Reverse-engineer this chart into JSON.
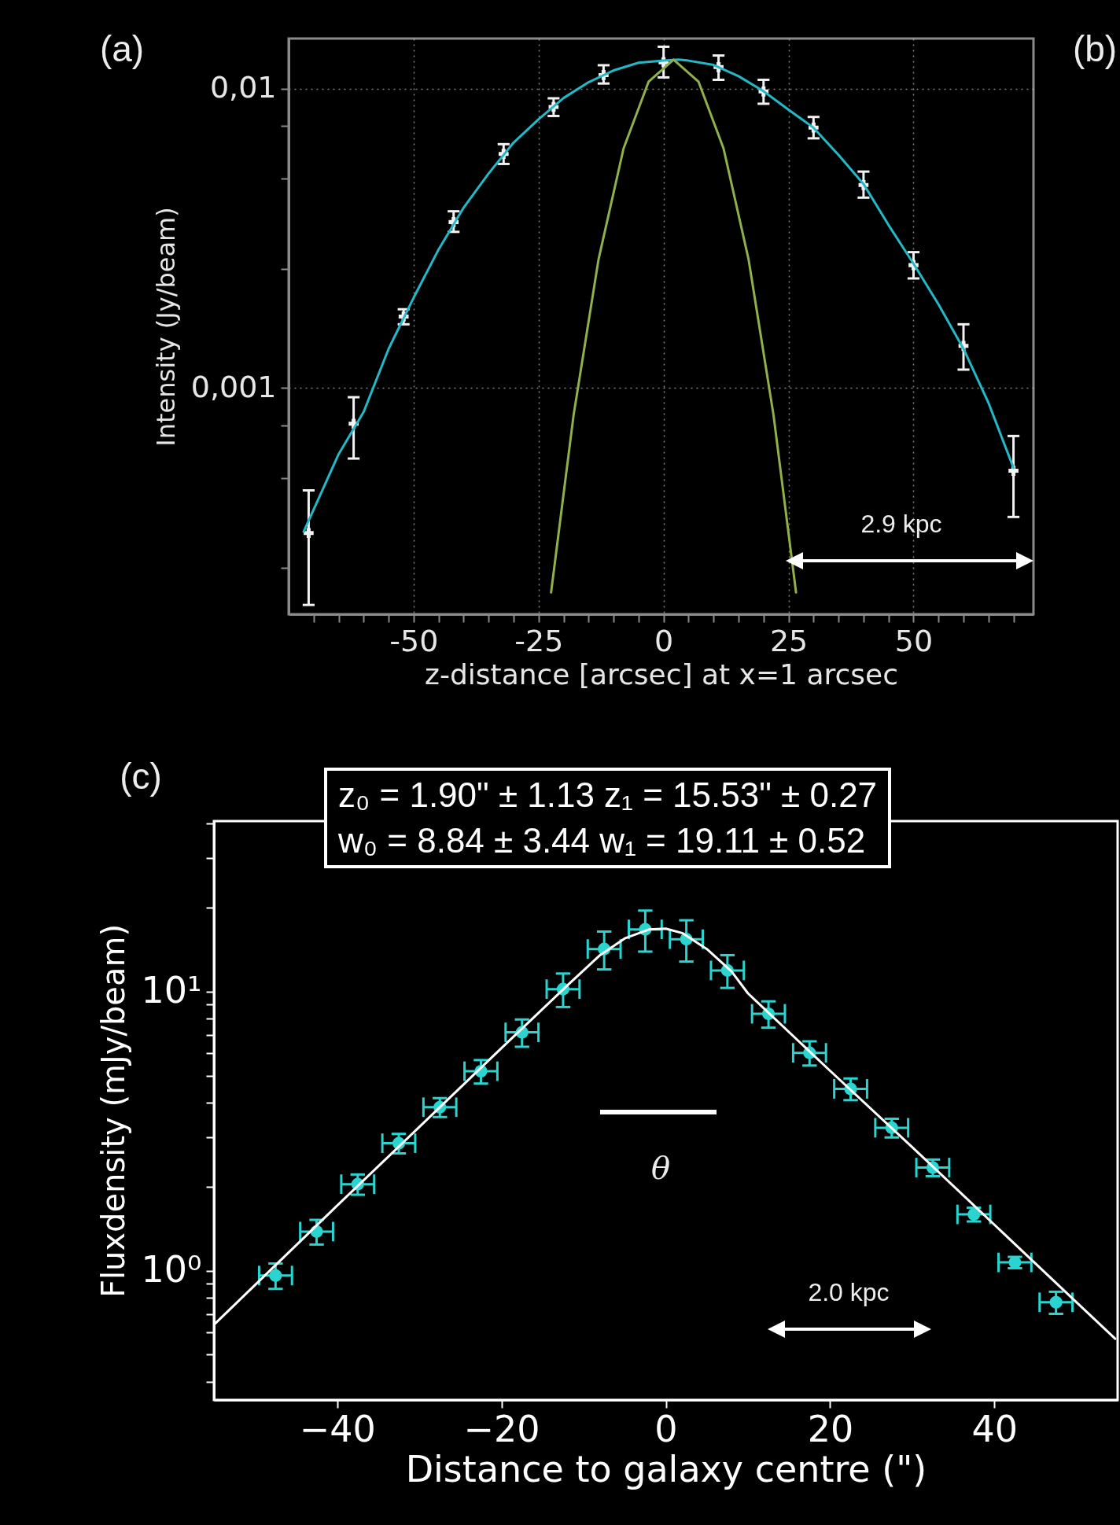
{
  "chart_data": [
    {
      "type": "scatter",
      "xlabel": "z-distance [arcsec] at x=1 arcsec",
      "ylabel": "Intensity (Jy/beam)",
      "log": true,
      "grid": true,
      "xlim": [
        -75,
        74
      ],
      "ylim": [
        0.000175,
        0.0147
      ],
      "xticks": [
        {
          "value": -70,
          "label": null
        },
        {
          "value": -65,
          "label": null
        },
        {
          "value": -60,
          "label": null
        },
        {
          "value": -55,
          "label": null
        },
        -50,
        {
          "value": -45,
          "label": null
        },
        {
          "value": -40,
          "label": null
        },
        {
          "value": -35,
          "label": null
        },
        {
          "value": -30,
          "label": null
        },
        -25,
        {
          "value": -20,
          "label": null
        },
        {
          "value": -15,
          "label": null
        },
        {
          "value": -10,
          "label": null
        },
        {
          "value": -5,
          "label": null
        },
        0,
        {
          "value": 5,
          "label": null
        },
        {
          "value": 10,
          "label": null
        },
        {
          "value": 15,
          "label": null
        },
        {
          "value": 20,
          "label": null
        },
        25,
        {
          "value": 30,
          "label": null
        },
        {
          "value": 35,
          "label": null
        },
        {
          "value": 40,
          "label": null
        },
        {
          "value": 45,
          "label": null
        },
        50,
        {
          "value": 55,
          "label": null
        },
        {
          "value": 60,
          "label": null
        },
        {
          "value": 65,
          "label": null
        },
        {
          "value": 70,
          "label": null
        }
      ],
      "yticks": [
        {
          "value": 0.00025,
          "label": null
        },
        {
          "value": 0.0005,
          "label": null
        },
        {
          "value": 0.00075,
          "label": null
        },
        {
          "value": 0.001,
          "label": "0,001"
        },
        {
          "value": 0.0025,
          "label": null
        },
        {
          "value": 0.005,
          "label": null
        },
        {
          "value": 0.0075,
          "label": null
        },
        {
          "value": 0.01,
          "label": "0,01"
        }
      ],
      "annotations": [
        "(a)",
        "(b)",
        "2.9 kpc"
      ],
      "series": [
        {
          "type": "line",
          "color": "#22b8c8",
          "x": [
            -72,
            -65,
            -60,
            -55,
            -50,
            -45,
            -40,
            -35,
            -30,
            -25,
            -20,
            -15,
            -10,
            -5,
            0,
            3,
            5,
            10,
            15,
            20,
            25,
            30,
            35,
            40,
            45,
            50,
            55,
            60,
            65,
            70
          ],
          "values": [
            0.00033,
            0.0006,
            0.00083,
            0.00135,
            0.002,
            0.0029,
            0.004,
            0.0052,
            0.0066,
            0.0079,
            0.0093,
            0.0105,
            0.0115,
            0.0122,
            0.0124,
            0.0125,
            0.0124,
            0.012,
            0.011,
            0.0098,
            0.0085,
            0.0074,
            0.006,
            0.0048,
            0.0035,
            0.0026,
            0.0019,
            0.00135,
            0.00089,
            0.00054
          ]
        },
        {
          "type": "line",
          "color": "#8fb04a",
          "x": [
            -22.5,
            -18,
            -13,
            -8,
            -3,
            2,
            7,
            12,
            17,
            22,
            26.5
          ],
          "values": [
            0.000207,
            0.00081,
            0.00269,
            0.00631,
            0.01054,
            0.0125,
            0.01054,
            0.00631,
            0.00269,
            0.00081,
            0.000207
          ]
        },
        {
          "type": "scatter",
          "color": "#f2f2f2",
          "marker": "cross",
          "x": [
            -71,
            -62,
            -52,
            -42,
            -32,
            -22,
            -12,
            0,
            11,
            20,
            30,
            40,
            50,
            60,
            70
          ],
          "values": [
            0.000327,
            0.000758,
            0.00173,
            0.00358,
            0.00605,
            0.00868,
            0.0111,
            0.01225,
            0.0118,
            0.00978,
            0.00741,
            0.00476,
            0.00257,
            0.00138,
            0.000528
          ],
          "errors": [
            [
              0.000188,
              0.000454
            ],
            [
              0.00058,
              0.00093
            ],
            [
              0.00163,
              0.00183
            ],
            [
              0.00332,
              0.00389
            ],
            [
              0.0056,
              0.00652
            ],
            [
              0.0081,
              0.00928
            ],
            [
              0.0104,
              0.01197
            ],
            [
              0.0109,
              0.0138
            ],
            [
              0.0107,
              0.0129
            ],
            [
              0.0089,
              0.0107
            ],
            [
              0.00682,
              0.00804
            ],
            [
              0.00432,
              0.00528
            ],
            [
              0.00232,
              0.00284
            ],
            [
              0.00115,
              0.00163
            ],
            [
              0.00037,
              0.00069
            ]
          ]
        }
      ]
    },
    {
      "type": "scatter",
      "xlabel": "Distance to galaxy centre (\")",
      "ylabel": "Fluxdensity (mJy/beam)",
      "log": true,
      "xlim": [
        -55,
        55
      ],
      "ylim": [
        0.344,
        40.8
      ],
      "xticks": [
        {
          "value": -40,
          "label": "−40"
        },
        {
          "value": -20,
          "label": "−20"
        },
        0,
        20,
        40
      ],
      "yticks": [
        {
          "value": 0.4,
          "label": null
        },
        {
          "value": 0.5,
          "label": null
        },
        {
          "value": 0.6,
          "label": null
        },
        {
          "value": 0.7,
          "label": null
        },
        {
          "value": 0.8,
          "label": null
        },
        {
          "value": 0.9,
          "label": null
        },
        {
          "value": 1,
          "label": "10⁰"
        },
        {
          "value": 2,
          "label": null
        },
        {
          "value": 3,
          "label": null
        },
        {
          "value": 4,
          "label": null
        },
        {
          "value": 5,
          "label": null
        },
        {
          "value": 6,
          "label": null
        },
        {
          "value": 7,
          "label": null
        },
        {
          "value": 8,
          "label": null
        },
        {
          "value": 9,
          "label": null
        },
        {
          "value": 10,
          "label": "10¹"
        },
        {
          "value": 20,
          "label": null
        },
        {
          "value": 30,
          "label": null
        },
        {
          "value": 40,
          "label": null
        }
      ],
      "annotations": [
        "(c)",
        "z₀ = 1.90\" ± 1.13 z₁ = 15.53\" ± 0.27",
        "w₀ = 8.84 ± 3.44 w₁ = 19.11 ± 0.52",
        "θ",
        "2.0 kpc"
      ],
      "series": [
        {
          "type": "line",
          "color": "#ffffff",
          "x": [
            -55,
            -40,
            -30,
            -20,
            -12,
            -8,
            -5,
            -2,
            0,
            2,
            5,
            8,
            10,
            20,
            30,
            40,
            50,
            54.7
          ],
          "values": [
            0.64,
            1.71,
            3.27,
            6.27,
            10.5,
            13.5,
            15.5,
            16.7,
            16.8,
            16.2,
            14.2,
            11.8,
            9.85,
            5.2,
            2.77,
            1.46,
            0.77,
            0.57
          ]
        },
        {
          "type": "scatter",
          "color": "#2ad4d0",
          "marker": "circle",
          "x": [
            -47.5,
            -42.5,
            -37.5,
            -32.5,
            -27.5,
            -22.5,
            -17.5,
            -12.5,
            -7.5,
            -2.5,
            2.5,
            7.5,
            12.5,
            17.5,
            22.5,
            27.5,
            32.5,
            37.5,
            42.5,
            47.5
          ],
          "values": [
            0.96,
            1.38,
            2.04,
            2.86,
            3.85,
            5.18,
            7.14,
            10.2,
            14.2,
            16.7,
            15.4,
            11.9,
            8.32,
            6.03,
            4.48,
            3.25,
            2.34,
            1.59,
            1.07,
            0.77
          ],
          "errors": [
            0.1,
            0.14,
            0.17,
            0.23,
            0.3,
            0.5,
            0.8,
            1.4,
            2.2,
            2.8,
            2.6,
            1.6,
            0.9,
            0.6,
            0.4,
            0.25,
            0.16,
            0.09,
            0.05,
            0.07
          ],
          "xerrors": [
            2,
            2,
            2,
            2,
            2,
            2,
            2,
            2,
            2,
            2,
            2,
            2,
            2,
            2,
            2,
            2,
            2,
            2,
            2,
            2
          ]
        }
      ]
    }
  ]
}
